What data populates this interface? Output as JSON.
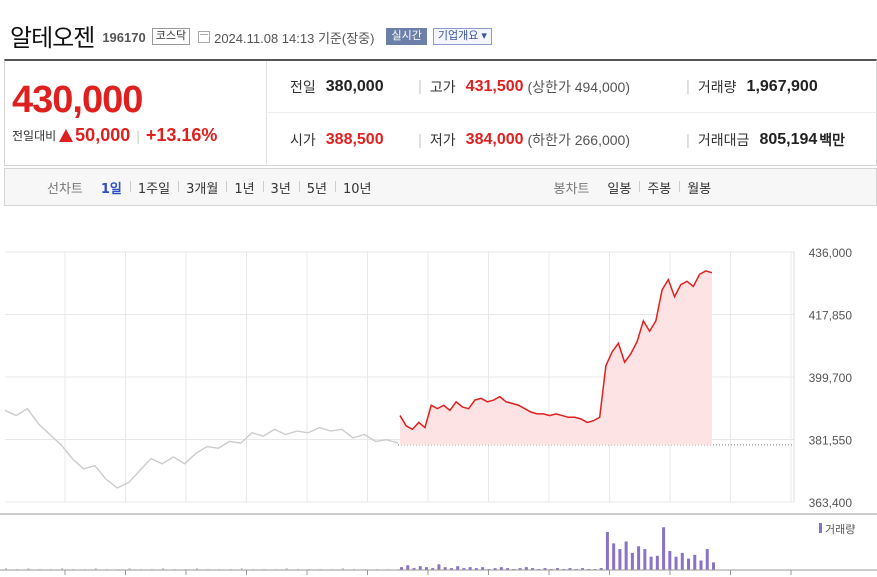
{
  "header": {
    "stock_name": "알테오젠",
    "stock_code": "196170",
    "market": "코스닥",
    "as_of": "2024.11.08 14:13  기준(장중)",
    "realtime_button": "실시간",
    "overview_button": "기업개요 ▾"
  },
  "quote": {
    "price": "430,000",
    "change_label": "전일대비",
    "change_amount": "50,000",
    "change_rate": "+13.16%",
    "prev_close_label": "전일",
    "prev_close": "380,000",
    "high_label": "고가",
    "high": "431,500",
    "upper_limit": "(상한가 494,000)",
    "volume_label": "거래량",
    "volume": "1,967,900",
    "open_label": "시가",
    "open": "388,500",
    "low_label": "저가",
    "low": "384,000",
    "lower_limit": "(하한가 266,000)",
    "trade_value_label": "거래대금",
    "trade_value": "805,194",
    "trade_value_unit": "백만"
  },
  "tabs": {
    "line_title": "선차트",
    "line": [
      "1일",
      "1주일",
      "3개월",
      "1년",
      "3년",
      "5년",
      "10년"
    ],
    "line_active": "1일",
    "candle_title": "봉차트",
    "candle": [
      "일봉",
      "주봉",
      "월봉"
    ]
  },
  "colors": {
    "up": "#e01f1f",
    "fill": "#fde3e3",
    "prev_line": "#cccccc",
    "volume": "#8a72c6",
    "grid": "#e8e8e8"
  },
  "chart_data": {
    "type": "line",
    "title": "",
    "y_ticks": [
      "436,000",
      "417,850",
      "399,700",
      "381,550",
      "363,400"
    ],
    "ylim": [
      363400,
      436000
    ],
    "prev_close": 380000,
    "legend": "거래량",
    "series": [
      {
        "values_prev_day": [
          390000,
          388500,
          390500,
          386000,
          383000,
          380000,
          376000,
          373000,
          374000,
          370000,
          367500,
          369000,
          372500,
          376000,
          374500,
          376500,
          374500,
          377500,
          379500,
          379000,
          381000,
          380500,
          383500,
          382500,
          384500,
          383000,
          384000,
          383500,
          385000,
          384000,
          384500,
          382000,
          383000,
          381000,
          381500,
          380500
        ]
      },
      {
        "values_today": [
          388500,
          385500,
          384500,
          386500,
          385000,
          391500,
          390500,
          391500,
          390000,
          392500,
          391000,
          390500,
          393000,
          393500,
          392500,
          393000,
          394000,
          392500,
          392000,
          391500,
          390500,
          389500,
          389000,
          389000,
          388500,
          389000,
          388500,
          388000,
          388000,
          387500,
          386500,
          387000,
          388000,
          403000,
          407000,
          409500,
          404000,
          406500,
          410000,
          416000,
          413000,
          416000,
          425000,
          428000,
          423000,
          426500,
          427500,
          426000,
          429500,
          430500,
          430000
        ]
      }
    ],
    "volume_today": [
      3,
      5,
      2,
      4,
      3,
      2,
      6,
      3,
      2,
      4,
      2,
      3,
      2,
      3,
      1,
      2,
      3,
      2,
      1,
      2,
      3,
      2,
      1,
      2,
      1,
      2,
      1,
      2,
      1,
      2,
      1,
      1,
      2,
      40,
      28,
      22,
      30,
      18,
      25,
      22,
      14,
      15,
      45,
      20,
      14,
      18,
      12,
      16,
      10,
      22,
      8
    ],
    "volume_prev_day": [
      2,
      1,
      2,
      1,
      1,
      2,
      1,
      1,
      2,
      1,
      1,
      2,
      1,
      1,
      2,
      1,
      1,
      2,
      1,
      1,
      1,
      2,
      1,
      1,
      1,
      2,
      1,
      1,
      1,
      1,
      2,
      1,
      1,
      1,
      1,
      1
    ]
  }
}
